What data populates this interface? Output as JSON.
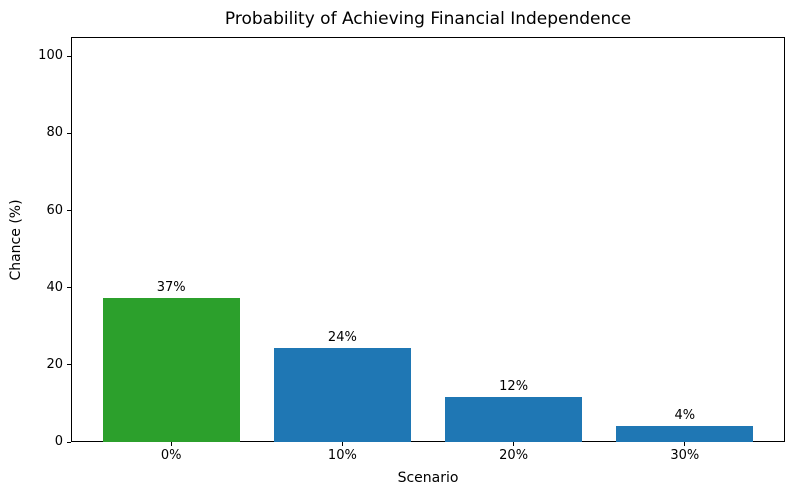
{
  "chart_data": {
    "type": "bar",
    "title": "Probability of Achieving Financial Independence",
    "xlabel": "Scenario",
    "ylabel": "Chance (%)",
    "categories": [
      "0%",
      "10%",
      "20%",
      "30%"
    ],
    "values": [
      37.4,
      24.4,
      11.7,
      4.1
    ],
    "bar_labels": [
      "37%",
      "24%",
      "12%",
      "4%"
    ],
    "bar_colors": [
      "#2ca02c",
      "#1f77b4",
      "#1f77b4",
      "#1f77b4"
    ],
    "ylim": [
      0,
      105
    ],
    "yticks": [
      0,
      20,
      40,
      60,
      80,
      100
    ],
    "grid": false,
    "legend": false,
    "frame_color": "#000000",
    "background_color": "#ffffff"
  }
}
